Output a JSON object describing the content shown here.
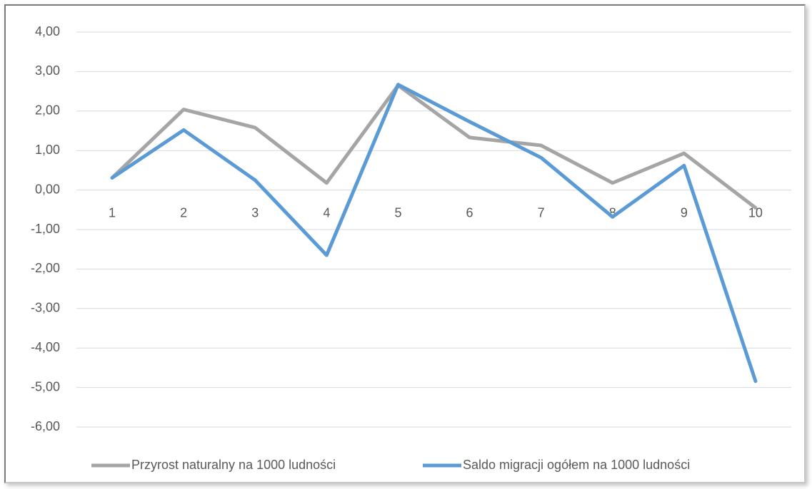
{
  "chart_data": {
    "type": "line",
    "categories": [
      "1",
      "2",
      "3",
      "4",
      "5",
      "6",
      "7",
      "8",
      "9",
      "10"
    ],
    "series": [
      {
        "name": "Przyrost naturalny na 1000 ludności",
        "color": "#a5a5a5",
        "values": [
          0.31,
          2.04,
          1.58,
          0.18,
          2.65,
          1.33,
          1.13,
          0.18,
          0.93,
          -0.45
        ]
      },
      {
        "name": "Saldo migracji ogółem na 1000 ludności",
        "color": "#5b9bd5",
        "values": [
          0.31,
          1.52,
          0.25,
          -1.65,
          2.67,
          1.73,
          0.82,
          -0.68,
          0.62,
          -4.84
        ]
      }
    ],
    "ylim": [
      -6,
      4
    ],
    "yticks": [
      {
        "value": 4,
        "label": "4,00"
      },
      {
        "value": 3,
        "label": "3,00"
      },
      {
        "value": 2,
        "label": "2,00"
      },
      {
        "value": 1,
        "label": "1,00"
      },
      {
        "value": 0,
        "label": "0,00"
      },
      {
        "value": -1,
        "label": "-1,00"
      },
      {
        "value": -2,
        "label": "-2,00"
      },
      {
        "value": -3,
        "label": "-3,00"
      },
      {
        "value": -4,
        "label": "-4,00"
      },
      {
        "value": -5,
        "label": "-5,00"
      },
      {
        "value": -6,
        "label": "-6,00"
      }
    ],
    "grid": true,
    "legend": "bottom"
  }
}
